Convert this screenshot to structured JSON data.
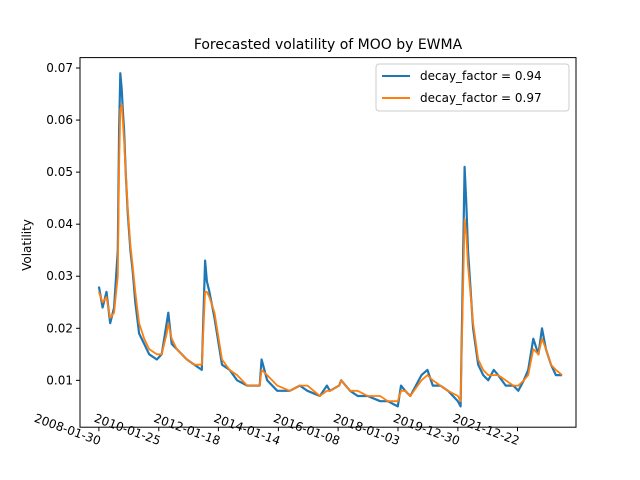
{
  "chart_data": {
    "type": "line",
    "title": "Forecasted volatility of MOO by EWMA",
    "xlabel": "",
    "ylabel": "Volatility",
    "x_ticks": [
      "2008-01-30",
      "2010-01-25",
      "2012-01-18",
      "2014-01-14",
      "2016-01-08",
      "2018-01-03",
      "2019-12-30",
      "2021-12-22"
    ],
    "y_ticks": [
      "0.01",
      "0.02",
      "0.03",
      "0.04",
      "0.05",
      "0.06",
      "0.07"
    ],
    "ylim": [
      0.001,
      0.072
    ],
    "grid": false,
    "legend_position": "top-right",
    "series": [
      {
        "name": "decay_factor = 0.94",
        "color": "#1f77b4",
        "x": [
          "2008-01-30",
          "2008-03-15",
          "2008-05-01",
          "2008-06-15",
          "2008-08-01",
          "2008-09-15",
          "2008-10-01",
          "2008-10-15",
          "2008-11-01",
          "2008-11-15",
          "2008-12-01",
          "2008-12-20",
          "2009-01-15",
          "2009-02-15",
          "2009-03-15",
          "2009-04-15",
          "2009-06-01",
          "2009-08-01",
          "2009-10-01",
          "2010-01-01",
          "2010-03-01",
          "2010-05-01",
          "2010-05-20",
          "2010-07-01",
          "2010-09-01",
          "2011-01-01",
          "2011-04-01",
          "2011-07-01",
          "2011-08-10",
          "2011-09-01",
          "2011-10-01",
          "2011-12-01",
          "2012-03-01",
          "2012-06-01",
          "2012-09-01",
          "2013-01-01",
          "2013-06-01",
          "2013-06-25",
          "2013-09-01",
          "2014-01-01",
          "2014-06-01",
          "2014-10-01",
          "2015-01-01",
          "2015-06-01",
          "2015-08-25",
          "2015-10-01",
          "2016-01-20",
          "2016-02-15",
          "2016-06-01",
          "2016-09-01",
          "2017-01-01",
          "2017-06-01",
          "2017-09-01",
          "2018-01-01",
          "2018-02-08",
          "2018-04-01",
          "2018-06-01",
          "2018-10-15",
          "2018-12-25",
          "2019-03-01",
          "2019-06-01",
          "2019-09-01",
          "2019-12-30",
          "2020-02-01",
          "2020-03-20",
          "2020-04-10",
          "2020-05-01",
          "2020-07-01",
          "2020-09-01",
          "2020-11-01",
          "2021-01-01",
          "2021-03-10",
          "2021-05-01",
          "2021-08-01",
          "2021-11-01",
          "2022-01-01",
          "2022-03-08",
          "2022-05-01",
          "2022-07-01",
          "2022-09-01",
          "2022-10-15",
          "2022-12-01",
          "2023-02-01",
          "2023-04-01",
          "2023-06-15"
        ],
        "values": [
          0.028,
          0.024,
          0.027,
          0.021,
          0.024,
          0.035,
          0.058,
          0.069,
          0.066,
          0.062,
          0.058,
          0.05,
          0.042,
          0.035,
          0.031,
          0.025,
          0.019,
          0.017,
          0.015,
          0.014,
          0.015,
          0.021,
          0.023,
          0.017,
          0.016,
          0.014,
          0.013,
          0.012,
          0.033,
          0.029,
          0.027,
          0.022,
          0.013,
          0.012,
          0.01,
          0.009,
          0.009,
          0.014,
          0.01,
          0.008,
          0.008,
          0.009,
          0.008,
          0.007,
          0.009,
          0.008,
          0.009,
          0.01,
          0.008,
          0.007,
          0.007,
          0.006,
          0.006,
          0.005,
          0.009,
          0.008,
          0.007,
          0.011,
          0.012,
          0.009,
          0.009,
          0.008,
          0.006,
          0.005,
          0.051,
          0.044,
          0.035,
          0.02,
          0.013,
          0.011,
          0.01,
          0.012,
          0.011,
          0.009,
          0.009,
          0.008,
          0.01,
          0.012,
          0.018,
          0.015,
          0.02,
          0.016,
          0.013,
          0.011,
          0.011
        ]
      },
      {
        "name": "decay_factor = 0.97",
        "color": "#ff7f0e",
        "x": [
          "2008-01-30",
          "2008-03-15",
          "2008-05-01",
          "2008-06-15",
          "2008-08-01",
          "2008-09-15",
          "2008-10-01",
          "2008-10-15",
          "2008-11-01",
          "2008-11-15",
          "2008-12-01",
          "2008-12-20",
          "2009-01-15",
          "2009-02-15",
          "2009-03-15",
          "2009-04-15",
          "2009-06-01",
          "2009-08-01",
          "2009-10-01",
          "2010-01-01",
          "2010-03-01",
          "2010-05-01",
          "2010-05-20",
          "2010-07-01",
          "2010-09-01",
          "2011-01-01",
          "2011-04-01",
          "2011-07-01",
          "2011-08-10",
          "2011-09-01",
          "2011-10-01",
          "2011-12-01",
          "2012-03-01",
          "2012-06-01",
          "2012-09-01",
          "2013-01-01",
          "2013-06-01",
          "2013-06-25",
          "2013-09-01",
          "2014-01-01",
          "2014-06-01",
          "2014-10-01",
          "2015-01-01",
          "2015-06-01",
          "2015-08-25",
          "2015-10-01",
          "2016-01-20",
          "2016-02-15",
          "2016-06-01",
          "2016-09-01",
          "2017-01-01",
          "2017-06-01",
          "2017-09-01",
          "2018-01-01",
          "2018-02-08",
          "2018-04-01",
          "2018-06-01",
          "2018-10-15",
          "2018-12-25",
          "2019-03-01",
          "2019-06-01",
          "2019-09-01",
          "2019-12-30",
          "2020-02-01",
          "2020-03-20",
          "2020-04-10",
          "2020-05-01",
          "2020-07-01",
          "2020-09-01",
          "2020-11-01",
          "2021-01-01",
          "2021-03-10",
          "2021-05-01",
          "2021-08-01",
          "2021-11-01",
          "2022-01-01",
          "2022-03-08",
          "2022-05-01",
          "2022-07-01",
          "2022-09-01",
          "2022-10-15",
          "2022-12-01",
          "2023-02-01",
          "2023-04-01",
          "2023-06-15"
        ],
        "values": [
          0.027,
          0.025,
          0.026,
          0.022,
          0.023,
          0.03,
          0.051,
          0.062,
          0.063,
          0.06,
          0.056,
          0.05,
          0.043,
          0.036,
          0.032,
          0.027,
          0.021,
          0.018,
          0.016,
          0.015,
          0.015,
          0.019,
          0.021,
          0.018,
          0.016,
          0.014,
          0.013,
          0.013,
          0.027,
          0.027,
          0.026,
          0.023,
          0.014,
          0.012,
          0.011,
          0.009,
          0.009,
          0.012,
          0.011,
          0.009,
          0.008,
          0.009,
          0.009,
          0.007,
          0.008,
          0.008,
          0.009,
          0.01,
          0.008,
          0.008,
          0.007,
          0.007,
          0.006,
          0.006,
          0.008,
          0.008,
          0.007,
          0.01,
          0.011,
          0.01,
          0.009,
          0.008,
          0.007,
          0.006,
          0.041,
          0.038,
          0.032,
          0.021,
          0.014,
          0.012,
          0.011,
          0.011,
          0.011,
          0.01,
          0.009,
          0.009,
          0.01,
          0.011,
          0.016,
          0.015,
          0.018,
          0.016,
          0.013,
          0.012,
          0.011
        ]
      }
    ]
  }
}
